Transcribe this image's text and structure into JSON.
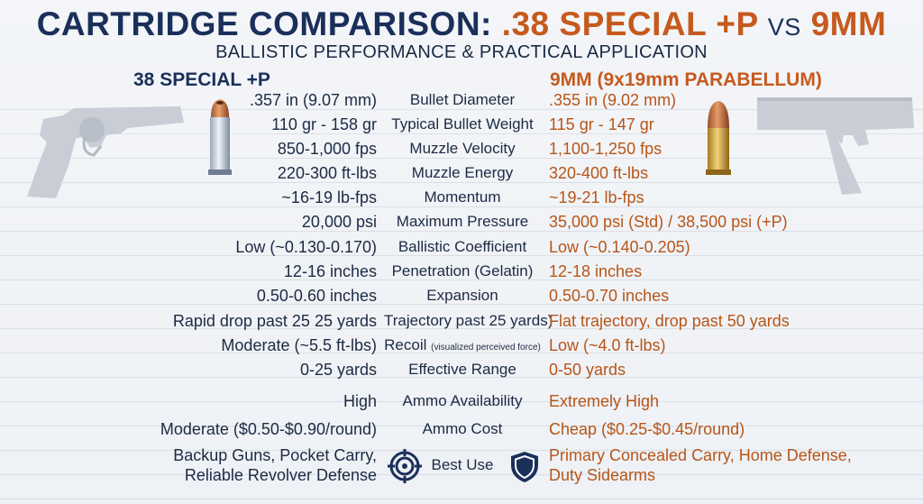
{
  "title": {
    "part1": "CARTRIDGE COMPARISON:",
    "part2": ".38 SPECIAL +P",
    "vs": "VS",
    "part3": "9MM"
  },
  "subtitle": "BALLISTIC PERFORMANCE & PRACTICAL APPLICATION",
  "left_heading": "38 SPECIAL +P",
  "right_heading": "9MM (9x19mm PARABELLUM)",
  "rows": [
    {
      "left": ".357 in (9.07 mm)",
      "metric": "Bullet Diameter",
      "right": ".355 in (9.02 mm)"
    },
    {
      "left": "110 gr - 158 gr",
      "metric": "Typical Bullet Weight",
      "right": "115 gr - 147 gr"
    },
    {
      "left": "850-1,000 fps",
      "metric": "Muzzle Velocity",
      "right": "1,100-1,250 fps"
    },
    {
      "left": "220-300 ft-lbs",
      "metric": "Muzzle Energy",
      "right": "320-400 ft-lbs"
    },
    {
      "left": "~16-19 lb-fps",
      "metric": "Momentum",
      "right": "~19-21 lb-fps"
    },
    {
      "left": "20,000 psi",
      "metric": "Maximum Pressure",
      "right": "35,000 psi (Std) / 38,500 psi (+P)"
    },
    {
      "left": "Low (~0.130-0.170)",
      "metric": "Ballistic Coefficient",
      "right": "Low (~0.140-0.205)"
    },
    {
      "left": "12-16 inches",
      "metric": "Penetration (Gelatin)",
      "right": "12-18 inches"
    },
    {
      "left": "0.50-0.60 inches",
      "metric": "Expansion",
      "right": "0.50-0.70 inches"
    },
    {
      "left": "Rapid drop past 25 25 yards",
      "metric": "Trajectory past 25 yards)",
      "right": "Flat trajectory, drop past 50 yards"
    },
    {
      "left": "Moderate (~5.5 ft-lbs)",
      "metric": "Recoil",
      "metric_note": "(visualized perceived force)",
      "right": "Low (~4.0 ft-lbs)"
    },
    {
      "left": "0-25 yards",
      "metric": "Effective Range",
      "right": "0-50 yards"
    },
    {
      "left": "High",
      "metric": "Ammo Availability",
      "right": "Extremely High"
    },
    {
      "left": "Moderate ($0.50-$0.90/round)",
      "metric": "Ammo Cost",
      "right": "Cheap ($0.25-$0.45/round)"
    }
  ],
  "best_use": {
    "metric": "Best Use",
    "left_line1": "Backup Guns, Pocket Carry,",
    "left_line2": "Reliable Revolver Defense",
    "right_line1": "Primary Concealed Carry, Home Defense,",
    "right_line2": "Duty Sidearms"
  },
  "icons": [
    "revolver-icon",
    "hollowpoint-38-bullet-icon",
    "pistol-icon",
    "9mm-bullet-icon",
    "target-icon",
    "shield-icon"
  ],
  "colors": {
    "navy": "#1a2f5a",
    "orange": "#c65a1e"
  }
}
